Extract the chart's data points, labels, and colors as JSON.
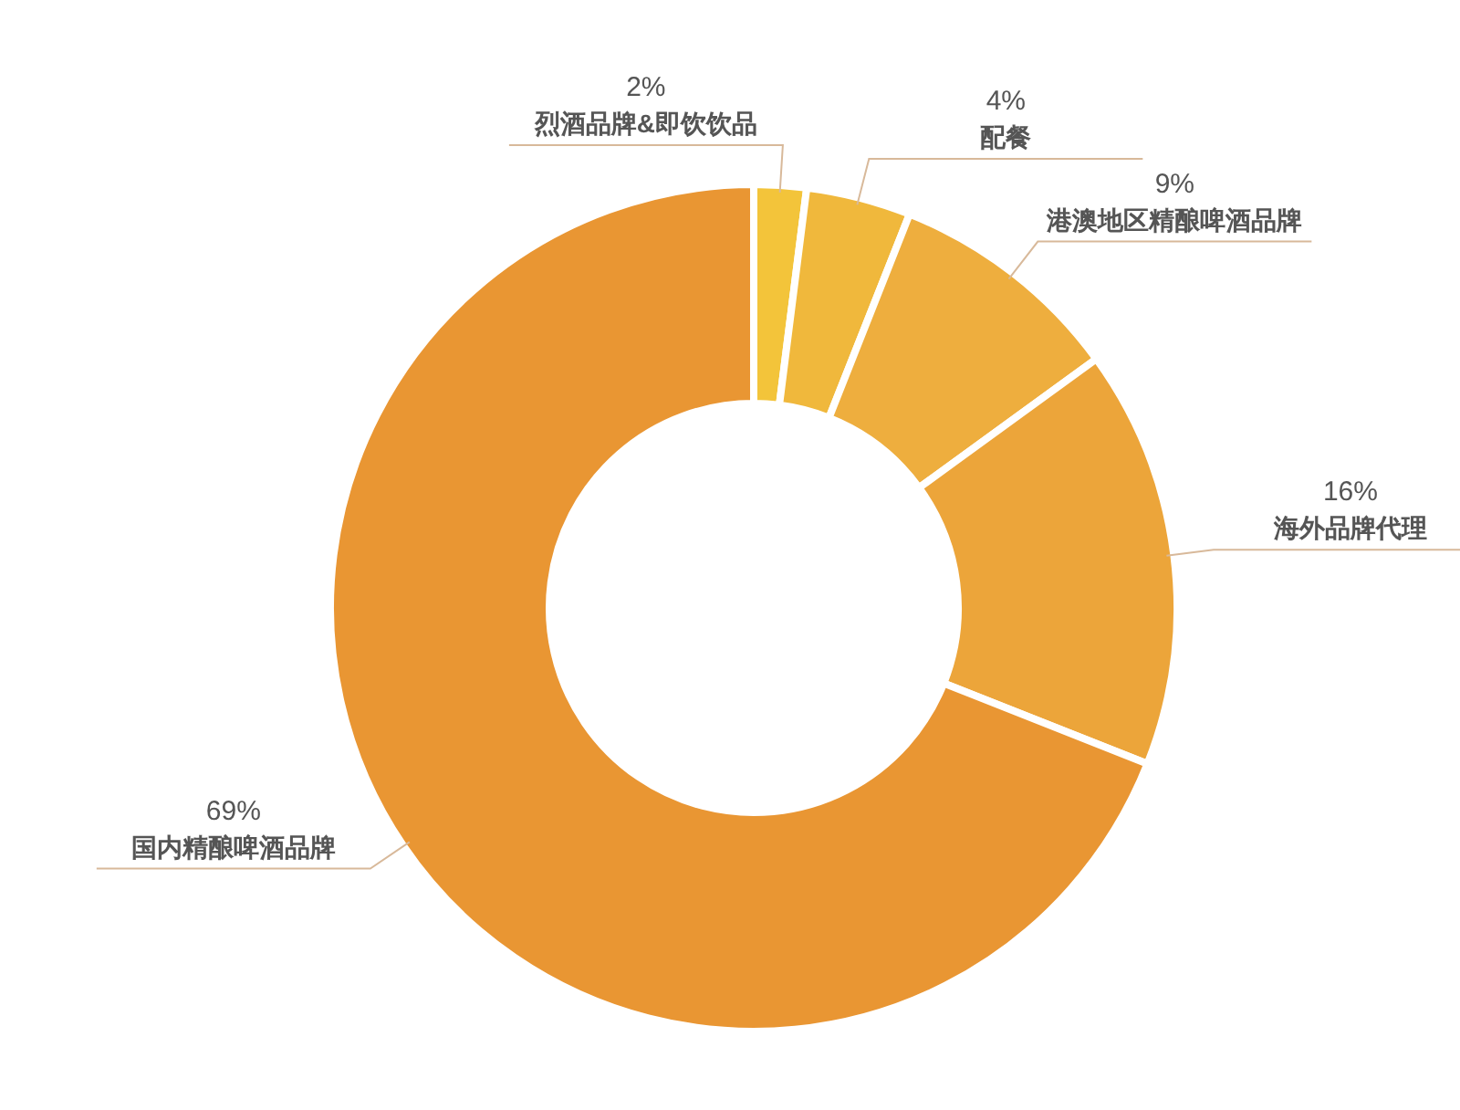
{
  "chart_data": {
    "type": "donut",
    "categories": [
      "烈酒品牌&即饮饮品",
      "配餐",
      "港澳地区精酿啤酒品牌",
      "海外品牌代理",
      "国内精酿啤酒品牌"
    ],
    "values": [
      2,
      4,
      9,
      16,
      69
    ],
    "colors": [
      "#f3c43a",
      "#f0b83c",
      "#eeae3e",
      "#eca53a",
      "#e99633"
    ],
    "value_labels": [
      "2%",
      "4%",
      "9%",
      "16%",
      "69%"
    ],
    "legend": false
  }
}
